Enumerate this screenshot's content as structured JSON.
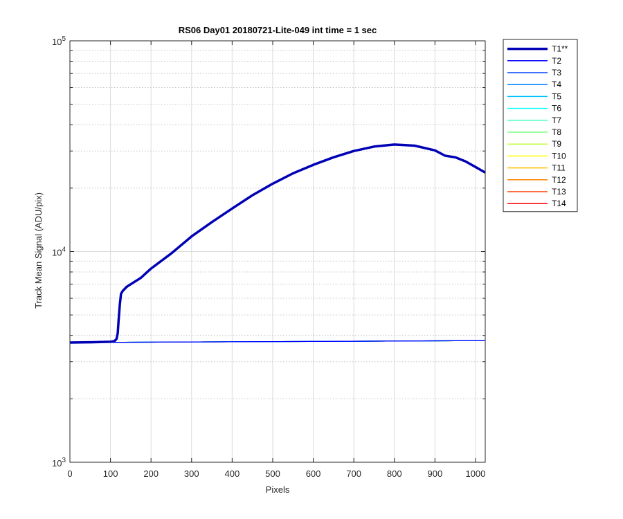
{
  "chart_data": {
    "type": "line",
    "title": "RS06 Day01 20180721-Lite-049 int time = 1 sec",
    "xlabel": "Pixels",
    "ylabel": "Track Mean Signal (ADU/pix)",
    "xlim": [
      0,
      1024
    ],
    "ylim": [
      1000,
      100000
    ],
    "yscale": "log",
    "grid": true,
    "legend_position": "outside-top-right",
    "x_ticks": [
      0,
      100,
      200,
      300,
      400,
      500,
      600,
      700,
      800,
      900,
      1000
    ],
    "x_tick_labels": [
      "0",
      "100",
      "200",
      "300",
      "400",
      "500",
      "600",
      "700",
      "800",
      "900",
      "1000"
    ],
    "y_ticks": [
      1000,
      10000,
      100000
    ],
    "y_tick_bases": [
      "10",
      "10",
      "10"
    ],
    "y_tick_exps": [
      "3",
      "4",
      "5"
    ],
    "series": [
      {
        "name": "T1**",
        "color": "#0000b4",
        "x": [
          0,
          50,
          100,
          110,
          115,
          118,
          120,
          123,
          126,
          130,
          140,
          150,
          175,
          200,
          250,
          300,
          350,
          400,
          450,
          500,
          550,
          600,
          650,
          700,
          750,
          800,
          850,
          900,
          925,
          950,
          975,
          1000,
          1024
        ],
        "y": [
          3700,
          3710,
          3730,
          3760,
          3850,
          4100,
          4700,
          5600,
          6300,
          6500,
          6800,
          7000,
          7500,
          8300,
          9800,
          11800,
          13800,
          16000,
          18500,
          21000,
          23500,
          25800,
          28000,
          30000,
          31500,
          32200,
          31800,
          30200,
          28500,
          28000,
          26800,
          25200,
          23700
        ]
      },
      {
        "name": "T2",
        "color": "#0000ff",
        "x": [
          0,
          1024
        ],
        "y": [
          3700,
          3780
        ]
      },
      {
        "name": "T3",
        "color": "#0040ff",
        "x": [
          0,
          1024
        ],
        "y": [
          3700,
          3780
        ]
      },
      {
        "name": "T4",
        "color": "#0080ff",
        "x": [
          0,
          1024
        ],
        "y": [
          3700,
          3780
        ]
      },
      {
        "name": "T5",
        "color": "#00bfff",
        "x": [
          0,
          1024
        ],
        "y": [
          3700,
          3780
        ]
      },
      {
        "name": "T6",
        "color": "#00ffff",
        "x": [
          0,
          1024
        ],
        "y": [
          3700,
          3780
        ]
      },
      {
        "name": "T7",
        "color": "#40ffbf",
        "x": [
          0,
          1024
        ],
        "y": [
          3700,
          3780
        ]
      },
      {
        "name": "T8",
        "color": "#80ff80",
        "x": [
          0,
          1024
        ],
        "y": [
          3700,
          3780
        ]
      },
      {
        "name": "T9",
        "color": "#bfff40",
        "x": [
          0,
          1024
        ],
        "y": [
          3700,
          3780
        ]
      },
      {
        "name": "T10",
        "color": "#ffff00",
        "x": [
          0,
          1024
        ],
        "y": [
          3700,
          3780
        ]
      },
      {
        "name": "T11",
        "color": "#ffbf00",
        "x": [
          0,
          1024
        ],
        "y": [
          3700,
          3780
        ]
      },
      {
        "name": "T12",
        "color": "#ff8000",
        "x": [
          0,
          1024
        ],
        "y": [
          3700,
          3780
        ]
      },
      {
        "name": "T13",
        "color": "#ff4000",
        "x": [
          0,
          1024
        ],
        "y": [
          3700,
          3780
        ]
      },
      {
        "name": "T14",
        "color": "#ff0000",
        "x": [
          0,
          1024
        ],
        "y": [
          3700,
          3780
        ]
      }
    ]
  }
}
